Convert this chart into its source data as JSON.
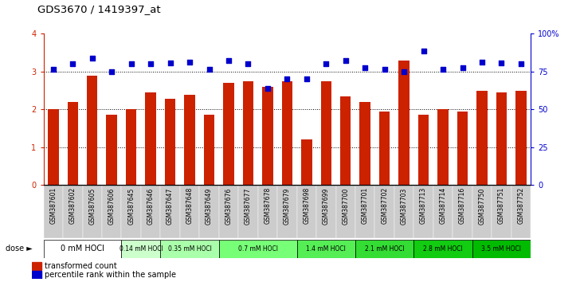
{
  "title": "GDS3670 / 1419397_at",
  "samples": [
    "GSM387601",
    "GSM387602",
    "GSM387605",
    "GSM387606",
    "GSM387645",
    "GSM387646",
    "GSM387647",
    "GSM387648",
    "GSM387649",
    "GSM387676",
    "GSM387677",
    "GSM387678",
    "GSM387679",
    "GSM387698",
    "GSM387699",
    "GSM387700",
    "GSM387701",
    "GSM387702",
    "GSM387703",
    "GSM387713",
    "GSM387714",
    "GSM387716",
    "GSM387750",
    "GSM387751",
    "GSM387752"
  ],
  "bar_values": [
    2.0,
    2.2,
    2.9,
    1.85,
    2.0,
    2.45,
    2.28,
    2.38,
    1.85,
    2.7,
    2.75,
    2.6,
    2.75,
    1.2,
    2.75,
    2.35,
    2.2,
    1.95,
    3.3,
    1.85,
    2.0,
    1.95,
    2.5,
    2.45,
    2.5
  ],
  "scatter_values": [
    3.05,
    3.2,
    3.35,
    3.0,
    3.2,
    3.2,
    3.22,
    3.25,
    3.05,
    3.3,
    3.2,
    2.55,
    2.8,
    2.8,
    3.2,
    3.3,
    3.1,
    3.05,
    3.0,
    3.55,
    3.05,
    3.1,
    3.25,
    3.22,
    3.2
  ],
  "bar_color": "#cc2200",
  "scatter_color": "#0000cc",
  "ylim_left": [
    0,
    4
  ],
  "ylim_right": [
    0,
    100
  ],
  "yticks_left": [
    0,
    1,
    2,
    3,
    4
  ],
  "yticks_right": [
    0,
    25,
    50,
    75,
    100
  ],
  "dose_groups": [
    {
      "label": "0 mM HOCl",
      "start": 0,
      "end": 4,
      "color": "#ffffff"
    },
    {
      "label": "0.14 mM HOCl",
      "start": 4,
      "end": 6,
      "color": "#ccffcc"
    },
    {
      "label": "0.35 mM HOCl",
      "start": 6,
      "end": 9,
      "color": "#aaffaa"
    },
    {
      "label": "0.7 mM HOCl",
      "start": 9,
      "end": 13,
      "color": "#77ff77"
    },
    {
      "label": "1.4 mM HOCl",
      "start": 13,
      "end": 16,
      "color": "#55ee55"
    },
    {
      "label": "2.1 mM HOCl",
      "start": 16,
      "end": 19,
      "color": "#33dd33"
    },
    {
      "label": "2.8 mM HOCl",
      "start": 19,
      "end": 22,
      "color": "#11cc11"
    },
    {
      "label": "3.5 mM HOCl",
      "start": 22,
      "end": 25,
      "color": "#00bb00"
    }
  ],
  "sample_label_bg": "#cccccc",
  "background_color": "#ffffff",
  "legend_bar_label": "transformed count",
  "legend_scatter_label": "percentile rank within the sample",
  "dose_label": "dose"
}
